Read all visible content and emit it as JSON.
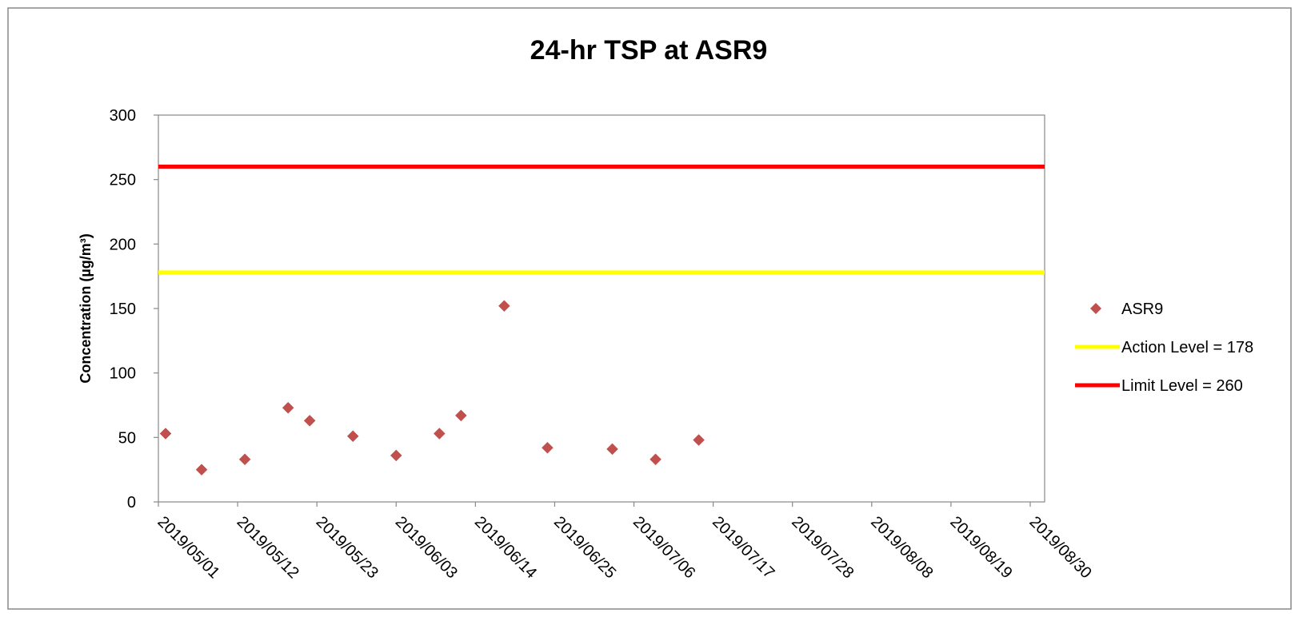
{
  "chart_data": {
    "type": "scatter",
    "title": "24-hr TSP at ASR9",
    "xlabel": "",
    "ylabel": "Concentration (µg/m³)",
    "ylim": [
      0,
      300
    ],
    "yticks": [
      0,
      50,
      100,
      150,
      200,
      250,
      300
    ],
    "xlim": [
      "2019/05/01",
      "2019/09/01"
    ],
    "xticks": [
      "2019/05/01",
      "2019/05/12",
      "2019/05/23",
      "2019/06/03",
      "2019/06/14",
      "2019/06/25",
      "2019/07/06",
      "2019/07/17",
      "2019/07/28",
      "2019/08/08",
      "2019/08/19",
      "2019/08/30"
    ],
    "grid": false,
    "legend_position": "right",
    "series": [
      {
        "name": "ASR9",
        "color": "#C0504D",
        "marker": "diamond",
        "points": [
          {
            "x": "2019/05/02",
            "y": 53
          },
          {
            "x": "2019/05/07",
            "y": 25
          },
          {
            "x": "2019/05/13",
            "y": 33
          },
          {
            "x": "2019/05/19",
            "y": 73
          },
          {
            "x": "2019/05/22",
            "y": 63
          },
          {
            "x": "2019/05/28",
            "y": 51
          },
          {
            "x": "2019/06/03",
            "y": 36
          },
          {
            "x": "2019/06/09",
            "y": 53
          },
          {
            "x": "2019/06/12",
            "y": 67
          },
          {
            "x": "2019/06/18",
            "y": 152
          },
          {
            "x": "2019/06/24",
            "y": 42
          },
          {
            "x": "2019/07/03",
            "y": 41
          },
          {
            "x": "2019/07/09",
            "y": 33
          },
          {
            "x": "2019/07/15",
            "y": 48
          }
        ]
      }
    ],
    "reference_lines": [
      {
        "name": "Action Level = 178",
        "y": 178,
        "color": "#FFFF00"
      },
      {
        "name": "Limit Level = 260",
        "y": 260,
        "color": "#FF0000"
      }
    ]
  }
}
